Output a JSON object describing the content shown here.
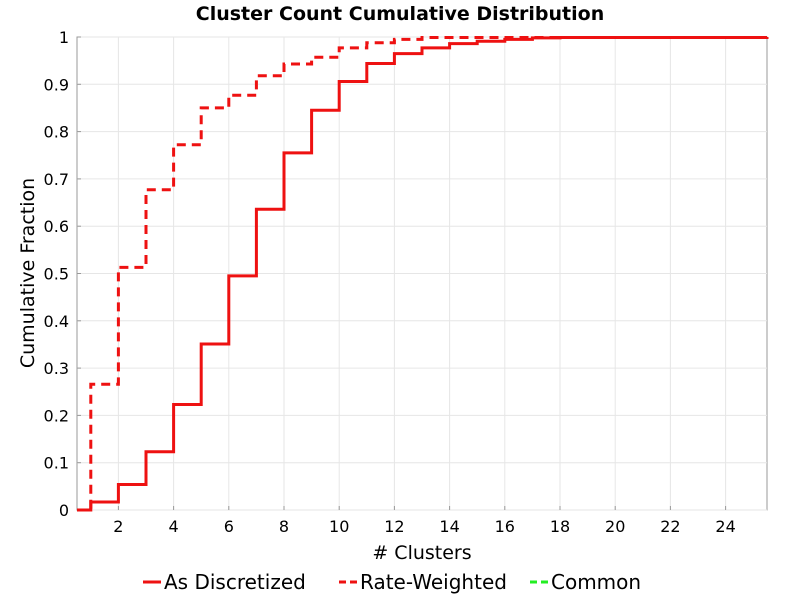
{
  "chart_data": {
    "type": "line",
    "title": "Cluster Count Cumulative Distribution",
    "xlabel": "# Clusters",
    "ylabel": "Cumulative Fraction",
    "xlim": [
      0.5,
      25.5
    ],
    "ylim": [
      0,
      1
    ],
    "x_ticks": [
      "2",
      "4",
      "6",
      "8",
      "10",
      "12",
      "14",
      "16",
      "18",
      "20",
      "22",
      "24"
    ],
    "y_ticks": [
      "0",
      "0.1",
      "0.2",
      "0.3",
      "0.4",
      "0.5",
      "0.6",
      "0.7",
      "0.8",
      "0.9",
      "1"
    ],
    "grid": true,
    "legend_position": "bottom",
    "series": [
      {
        "name": "As Discretized",
        "color": "#ee1111",
        "style": "solid",
        "step": true,
        "x": [
          0.5,
          1,
          2,
          3,
          4,
          5,
          6,
          7,
          8,
          9,
          10,
          11,
          12,
          13,
          14,
          15,
          16,
          17,
          18,
          25.5
        ],
        "y": [
          0,
          0.017,
          0.054,
          0.123,
          0.223,
          0.351,
          0.495,
          0.636,
          0.755,
          0.845,
          0.906,
          0.944,
          0.965,
          0.977,
          0.986,
          0.991,
          0.995,
          0.998,
          0.999,
          1.0
        ]
      },
      {
        "name": "Rate-Weighted",
        "color": "#ee1111",
        "style": "dashed",
        "step": true,
        "x": [
          0.5,
          1,
          2,
          3,
          4,
          5,
          6,
          7,
          8,
          9,
          10,
          11,
          12,
          13,
          25.5
        ],
        "y": [
          0,
          0.266,
          0.513,
          0.677,
          0.772,
          0.85,
          0.877,
          0.918,
          0.943,
          0.957,
          0.977,
          0.988,
          0.995,
          0.999,
          1.0
        ]
      },
      {
        "name": "Common",
        "color": "#22ee22",
        "style": "dashed",
        "step": true,
        "x": [],
        "y": []
      }
    ]
  }
}
